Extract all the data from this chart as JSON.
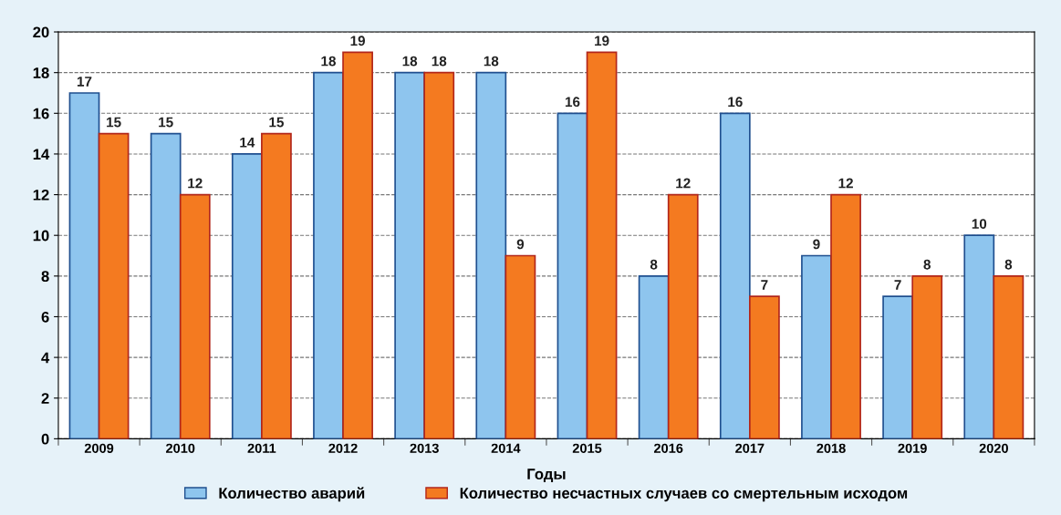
{
  "chart_data": {
    "type": "bar",
    "xlabel": "Годы",
    "categories": [
      "2009",
      "2010",
      "2011",
      "2012",
      "2013",
      "2014",
      "2015",
      "2016",
      "2017",
      "2018",
      "2019",
      "2020"
    ],
    "series": [
      {
        "name": "Количество аварий",
        "color": "#8ec5ee",
        "values": [
          17,
          15,
          14,
          18,
          18,
          18,
          16,
          8,
          16,
          9,
          7,
          10
        ]
      },
      {
        "name": "Количество несчастных случаев со смертельным исходом",
        "color": "#f47a20",
        "values": [
          15,
          12,
          15,
          19,
          18,
          9,
          19,
          12,
          7,
          12,
          8,
          8
        ]
      }
    ],
    "ylim": [
      0,
      20
    ],
    "yticks": [
      0,
      2,
      4,
      6,
      8,
      10,
      12,
      14,
      16,
      18,
      20
    ],
    "grid": "y",
    "legend": "bottom",
    "data_labels": true
  }
}
